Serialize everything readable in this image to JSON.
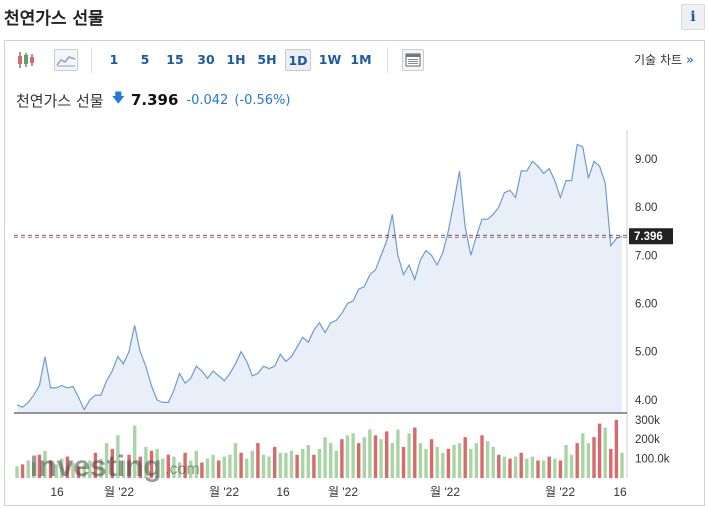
{
  "header": {
    "title": "천연가스 선물",
    "info_label": "i"
  },
  "toolbar": {
    "intervals": [
      "1",
      "5",
      "15",
      "30",
      "1H",
      "5H",
      "1D",
      "1W",
      "1M"
    ],
    "active_interval": "1D",
    "tech_chart_label": "기술 차트",
    "tech_chart_chevron": "»",
    "icons": [
      "candlestick-icon",
      "area-chart-icon",
      "table-view-icon"
    ]
  },
  "quote": {
    "name": "천연가스 선물",
    "direction_icon": "🡇",
    "price": "7.396",
    "change": "-0.042",
    "change_pct": "(-0.56%)"
  },
  "colors": {
    "line": "#6f9ccb",
    "area": "#e8eff8",
    "up_volume": "#a8d5a3",
    "down_volume": "#d9696b",
    "price_line": "#b23a3a",
    "accent": "#1a5aa6"
  },
  "chart_data": {
    "type": "area",
    "title": "",
    "ylim": [
      3.75,
      9.6
    ],
    "yticks": [
      "9.00",
      "8.00",
      "7.00",
      "6.00",
      "5.00",
      "4.00"
    ],
    "ytick_values": [
      9,
      8,
      7,
      6,
      5,
      4
    ],
    "last_price_label": "7.396",
    "last_price": 7.396,
    "x_labels": [
      "16",
      "월 '22",
      "월 '22",
      "16",
      "월 '22",
      "월 '22",
      "월 '22",
      "16"
    ],
    "volume_ticks": [
      "300k",
      "200k",
      "100.0k"
    ],
    "volume_tick_values": [
      300000,
      200000,
      100000
    ],
    "volume_max": 340000,
    "price_series": [
      3.9,
      3.85,
      3.95,
      4.1,
      4.3,
      4.9,
      4.25,
      4.25,
      4.3,
      4.25,
      4.28,
      4.05,
      3.8,
      4.0,
      4.1,
      4.1,
      4.4,
      4.6,
      4.9,
      4.75,
      5.0,
      5.55,
      5.0,
      4.7,
      4.3,
      4.0,
      3.95,
      3.95,
      4.2,
      4.55,
      4.35,
      4.45,
      4.7,
      4.6,
      4.45,
      4.6,
      4.5,
      4.4,
      4.55,
      4.75,
      5.0,
      4.8,
      4.5,
      4.55,
      4.7,
      4.65,
      4.7,
      4.95,
      4.8,
      4.9,
      5.1,
      5.3,
      5.2,
      5.45,
      5.6,
      5.4,
      5.6,
      5.65,
      5.8,
      6.0,
      6.05,
      6.3,
      6.35,
      6.6,
      6.7,
      7.0,
      7.3,
      7.85,
      7.0,
      6.6,
      6.8,
      6.5,
      6.9,
      7.1,
      7.0,
      6.8,
      7.05,
      7.5,
      8.1,
      8.75,
      7.6,
      7.0,
      7.4,
      7.75,
      7.75,
      7.85,
      8.0,
      8.3,
      8.35,
      8.2,
      8.75,
      8.75,
      8.95,
      8.85,
      8.7,
      8.8,
      8.55,
      8.2,
      8.55,
      8.55,
      9.3,
      9.25,
      8.6,
      8.95,
      8.85,
      8.5,
      7.2,
      7.35,
      7.396
    ],
    "volume_series": [
      60000,
      70000,
      90000,
      80000,
      120000,
      140000,
      90000,
      70000,
      100000,
      110000,
      80000,
      60000,
      70000,
      90000,
      130000,
      100000,
      180000,
      150000,
      220000,
      90000,
      120000,
      270000,
      110000,
      160000,
      140000,
      150000,
      100000,
      120000,
      110000,
      80000,
      130000,
      90000,
      140000,
      80000,
      100000,
      120000,
      90000,
      110000,
      120000,
      180000,
      130000,
      100000,
      140000,
      180000,
      120000,
      110000,
      160000,
      130000,
      130000,
      140000,
      120000,
      150000,
      170000,
      120000,
      150000,
      210000,
      180000,
      140000,
      200000,
      220000,
      230000,
      180000,
      210000,
      250000,
      220000,
      200000,
      240000,
      180000,
      250000,
      160000,
      230000,
      260000,
      180000,
      150000,
      200000,
      160000,
      130000,
      150000,
      170000,
      180000,
      210000,
      150000,
      180000,
      220000,
      190000,
      160000,
      120000,
      110000,
      100000,
      110000,
      130000,
      100000,
      110000,
      90000,
      90000,
      110000,
      100000,
      90000,
      170000,
      120000,
      180000,
      230000,
      180000,
      210000,
      280000,
      260000,
      150000,
      300000,
      130000
    ],
    "volume_up": [
      1,
      0,
      1,
      1,
      0,
      1,
      0,
      1,
      1,
      0,
      1,
      0,
      1,
      1,
      0,
      1,
      1,
      0,
      1,
      1,
      0,
      1,
      0,
      1,
      0,
      1,
      1,
      0,
      1,
      1,
      0,
      1,
      1,
      0,
      1,
      1,
      0,
      1,
      1,
      1,
      0,
      1,
      1,
      0,
      1,
      1,
      0,
      1,
      1,
      1,
      0,
      1,
      1,
      0,
      1,
      1,
      1,
      1,
      0,
      1,
      1,
      0,
      1,
      1,
      0,
      1,
      0,
      1,
      1,
      0,
      1,
      0,
      1,
      1,
      0,
      1,
      1,
      0,
      1,
      1,
      0,
      1,
      1,
      0,
      1,
      1,
      0,
      1,
      0,
      1,
      0,
      1,
      1,
      0,
      1,
      0,
      1,
      0,
      1,
      1,
      0,
      1,
      1,
      0,
      0,
      1,
      0,
      0,
      1
    ],
    "grid": false
  }
}
